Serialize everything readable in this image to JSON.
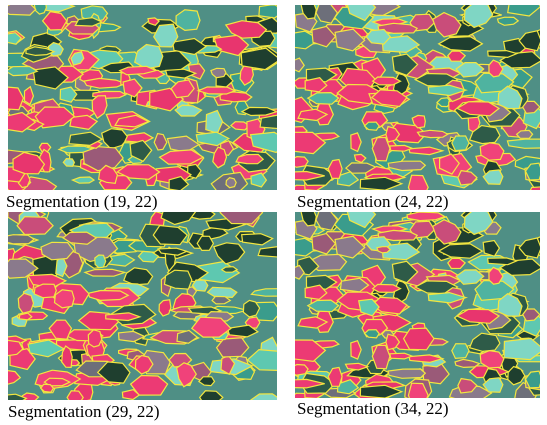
{
  "panels": [
    {
      "caption": "Segmentation (19, 22)"
    },
    {
      "caption": "Segmentation (24, 22)"
    },
    {
      "caption": "Segmentation (29, 22)"
    },
    {
      "caption": "Segmentation (34, 22)"
    }
  ]
}
